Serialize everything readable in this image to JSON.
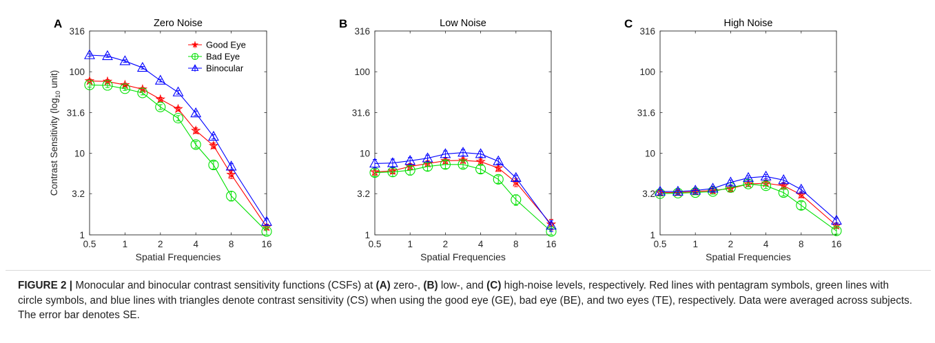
{
  "figure": {
    "caption_figure_label": "FIGURE 2 |",
    "caption_parts": [
      {
        "t": " Monocular and binocular contrast sensitivity functions (CSFs) at ",
        "b": false
      },
      {
        "t": "(A)",
        "b": true
      },
      {
        "t": " zero-, ",
        "b": false
      },
      {
        "t": "(B)",
        "b": true
      },
      {
        "t": " low-, and ",
        "b": false
      },
      {
        "t": "(C)",
        "b": true
      },
      {
        "t": " high-noise levels, respectively. Red lines with pentagram symbols, green lines with circle symbols, and blue lines with triangles denote contrast sensitivity (CS) when using the good eye (GE), bad eye (BE), and two eyes (TE), respectively. Data were averaged across subjects. The error bar denotes SE.",
        "b": false
      }
    ]
  },
  "colors": {
    "good": "#ff0000",
    "bad": "#00e000",
    "bin": "#0000ff"
  },
  "chart_data": [
    {
      "type": "line",
      "panel_label": "A",
      "title": "Zero Noise",
      "xlabel": "Spatial Frequencies",
      "ylabel": "Contrast Sensitivity (log10 unit)",
      "x_scale": "log2",
      "y_scale": "log10",
      "xlim": [
        0.5,
        16
      ],
      "ylim": [
        1,
        316
      ],
      "x_ticks": [
        0.5,
        1,
        2,
        4,
        8,
        16
      ],
      "x_tick_labels": [
        "0.5",
        "1",
        "2",
        "4",
        "8",
        "16"
      ],
      "y_ticks": [
        1,
        3.2,
        10,
        31.6,
        100,
        316
      ],
      "y_tick_labels": [
        "1",
        "3.2",
        "10",
        "31.6",
        "100",
        "316"
      ],
      "x": [
        0.5,
        0.71,
        1,
        1.41,
        2,
        2.83,
        4,
        5.66,
        8,
        16
      ],
      "legend": {
        "position": "top-right",
        "entries": [
          "Good Eye",
          "Bad Eye",
          "Binocular"
        ]
      },
      "series": [
        {
          "name": "Good Eye",
          "marker": "pentagram",
          "color": "good",
          "values": [
            77,
            76,
            69,
            61,
            46,
            35,
            19,
            12.4,
            5.5,
            1.25
          ],
          "err": [
            4,
            4,
            3,
            3,
            2.5,
            2,
            1.5,
            1,
            0.6,
            0.1
          ]
        },
        {
          "name": "Bad Eye",
          "marker": "circle",
          "color": "bad",
          "values": [
            69,
            68,
            62,
            55,
            37,
            27,
            12.8,
            7.2,
            3.0,
            1.1
          ],
          "err": [
            4,
            4,
            3,
            3,
            2.5,
            2,
            1.2,
            0.8,
            0.4,
            0.1
          ]
        },
        {
          "name": "Binocular",
          "marker": "triangle",
          "color": "bin",
          "values": [
            160,
            156,
            135,
            112,
            78,
            56,
            31,
            16,
            6.9,
            1.45
          ],
          "err": [
            6,
            6,
            5,
            4,
            3,
            3,
            2,
            1,
            0.6,
            0.12
          ]
        }
      ]
    },
    {
      "type": "line",
      "panel_label": "B",
      "title": "Low Noise",
      "xlabel": "Spatial Frequencies",
      "x_scale": "log2",
      "y_scale": "log10",
      "xlim": [
        0.5,
        16
      ],
      "ylim": [
        1,
        316
      ],
      "x_ticks": [
        0.5,
        1,
        2,
        4,
        8,
        16
      ],
      "x_tick_labels": [
        "0.5",
        "1",
        "2",
        "4",
        "8",
        "16"
      ],
      "y_ticks": [
        1,
        3.2,
        10,
        31.6,
        100,
        316
      ],
      "y_tick_labels": [
        "1",
        "3.2",
        "10",
        "31.6",
        "100",
        "316"
      ],
      "x": [
        0.5,
        0.71,
        1,
        1.41,
        2,
        2.83,
        4,
        5.66,
        8,
        16
      ],
      "series": [
        {
          "name": "Good Eye",
          "marker": "pentagram",
          "color": "good",
          "values": [
            5.9,
            6.1,
            6.9,
            7.5,
            8.1,
            8.2,
            7.9,
            6.6,
            4.4,
            1.35
          ],
          "err": [
            0.5,
            0.5,
            0.6,
            0.6,
            0.6,
            0.6,
            0.6,
            0.6,
            0.5,
            0.2
          ]
        },
        {
          "name": "Bad Eye",
          "marker": "circle",
          "color": "bad",
          "values": [
            5.8,
            5.9,
            6.2,
            6.9,
            7.3,
            7.3,
            6.4,
            4.8,
            2.7,
            1.1
          ],
          "err": [
            0.6,
            0.7,
            0.8,
            0.8,
            0.8,
            0.7,
            0.7,
            0.5,
            0.4,
            0.1
          ]
        },
        {
          "name": "Binocular",
          "marker": "triangle",
          "color": "bin",
          "values": [
            7.5,
            7.6,
            8.1,
            8.7,
            9.8,
            10.2,
            9.8,
            8.0,
            5.0,
            1.3
          ],
          "err": [
            0.9,
            0.9,
            0.8,
            0.8,
            0.9,
            0.9,
            0.8,
            0.6,
            0.4,
            0.2
          ]
        }
      ]
    },
    {
      "type": "line",
      "panel_label": "C",
      "title": "High Noise",
      "xlabel": "Spatial Frequencies",
      "x_scale": "log2",
      "y_scale": "log10",
      "xlim": [
        0.5,
        16
      ],
      "ylim": [
        1,
        316
      ],
      "x_ticks": [
        0.5,
        1,
        2,
        4,
        8,
        16
      ],
      "x_tick_labels": [
        "0.5",
        "1",
        "2",
        "4",
        "8",
        "16"
      ],
      "y_ticks": [
        1,
        3.2,
        10,
        31.6,
        100,
        316
      ],
      "y_tick_labels": [
        "1",
        "3.2",
        "10",
        "31.6",
        "100",
        "316"
      ],
      "x": [
        0.5,
        0.71,
        1,
        1.41,
        2,
        2.83,
        4,
        5.66,
        8,
        16
      ],
      "series": [
        {
          "name": "Good Eye",
          "marker": "pentagram",
          "color": "good",
          "values": [
            3.3,
            3.3,
            3.4,
            3.5,
            3.7,
            4.2,
            4.3,
            4.0,
            3.1,
            1.3
          ],
          "err": [
            0.2,
            0.2,
            0.2,
            0.25,
            0.3,
            0.3,
            0.3,
            0.3,
            0.25,
            0.1
          ]
        },
        {
          "name": "Bad Eye",
          "marker": "circle",
          "color": "bad",
          "values": [
            3.2,
            3.25,
            3.3,
            3.4,
            3.8,
            4.2,
            4.0,
            3.3,
            2.3,
            1.12
          ],
          "err": [
            0.2,
            0.2,
            0.2,
            0.25,
            0.3,
            0.3,
            0.3,
            0.3,
            0.25,
            0.1
          ]
        },
        {
          "name": "Binocular",
          "marker": "triangle",
          "color": "bin",
          "values": [
            3.4,
            3.4,
            3.5,
            3.7,
            4.4,
            5.0,
            5.2,
            4.7,
            3.6,
            1.5
          ],
          "err": [
            0.2,
            0.2,
            0.2,
            0.25,
            0.3,
            0.3,
            0.3,
            0.3,
            0.25,
            0.1
          ]
        }
      ]
    }
  ]
}
